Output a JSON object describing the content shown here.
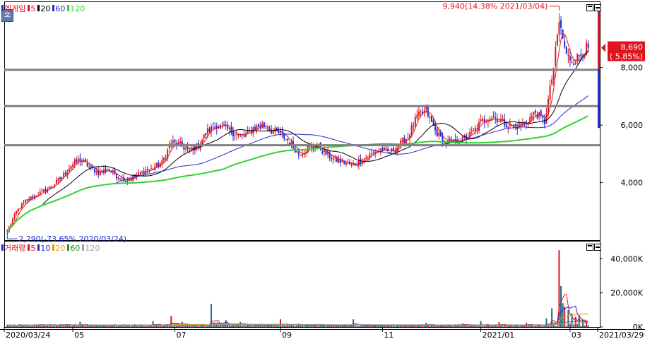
{
  "price_legend": {
    "name": "엠게임",
    "ma": [
      {
        "label": "5",
        "color": "#e0141e"
      },
      {
        "label": "20",
        "color": "#000000"
      },
      {
        "label": "60",
        "color": "#2828c8"
      },
      {
        "label": "120",
        "color": "#2fd22f"
      }
    ]
  },
  "volume_legend": {
    "name": "거래량",
    "ma": [
      {
        "label": "5",
        "color": "#e0141e"
      },
      {
        "label": "10",
        "color": "#2828c8"
      },
      {
        "label": "20",
        "color": "#e0a000"
      },
      {
        "label": "60",
        "color": "#2f8f2f"
      },
      {
        "label": "120",
        "color": "#a0a0a0"
      }
    ]
  },
  "side_icon": "호",
  "colors": {
    "up": "#e0141e",
    "down": "#1c2cd8",
    "level": "#808080",
    "price_tag": "#e0141e"
  },
  "chart_data": [
    {
      "type": "candlestick",
      "title": "엠게임",
      "ylim": [
        2000,
        10300
      ],
      "yticks": [
        {
          "value": 4000,
          "label": "4,000"
        },
        {
          "value": 6000,
          "label": "6,000"
        },
        {
          "value": 8000,
          "label": "8,000"
        }
      ],
      "x_labels": [
        "2020/03/24",
        "05",
        "07",
        "09",
        "11",
        "2021/01",
        "03",
        "2021/03/29"
      ],
      "horizontal_levels": [
        7920,
        6660,
        5300
      ],
      "last_price": {
        "value": 8690,
        "label": "8,690",
        "change": "( 5.85%)"
      },
      "annotations": {
        "high": {
          "value": 9940,
          "text": "9,940(14.38% 2021/03/04)"
        },
        "low": {
          "value": 2290,
          "text": "2,290(-73.65% 2020/03/24)"
        }
      },
      "anchors": [
        [
          0,
          2290
        ],
        [
          5,
          3000
        ],
        [
          10,
          3350
        ],
        [
          15,
          3550
        ],
        [
          20,
          3700
        ],
        [
          25,
          3900
        ],
        [
          30,
          4200
        ],
        [
          35,
          4600
        ],
        [
          40,
          4800
        ],
        [
          45,
          4550
        ],
        [
          50,
          4350
        ],
        [
          55,
          4450
        ],
        [
          60,
          4250
        ],
        [
          65,
          4100
        ],
        [
          70,
          4200
        ],
        [
          75,
          4400
        ],
        [
          80,
          4500
        ],
        [
          85,
          4700
        ],
        [
          90,
          5400
        ],
        [
          95,
          5300
        ],
        [
          100,
          5100
        ],
        [
          105,
          5300
        ],
        [
          110,
          5800
        ],
        [
          115,
          6000
        ],
        [
          120,
          5900
        ],
        [
          125,
          5700
        ],
        [
          130,
          5600
        ],
        [
          135,
          5900
        ],
        [
          140,
          6000
        ],
        [
          145,
          5800
        ],
        [
          150,
          5700
        ],
        [
          155,
          5400
        ],
        [
          160,
          5000
        ],
        [
          165,
          5200
        ],
        [
          170,
          5300
        ],
        [
          175,
          5000
        ],
        [
          180,
          4800
        ],
        [
          185,
          4700
        ],
        [
          190,
          4600
        ],
        [
          195,
          4800
        ],
        [
          200,
          5000
        ],
        [
          205,
          5150
        ],
        [
          210,
          5050
        ],
        [
          215,
          5300
        ],
        [
          220,
          5600
        ],
        [
          225,
          6300
        ],
        [
          230,
          6500
        ],
        [
          235,
          5800
        ],
        [
          240,
          5400
        ],
        [
          245,
          5400
        ],
        [
          250,
          5500
        ],
        [
          255,
          5700
        ],
        [
          260,
          6100
        ],
        [
          265,
          6300
        ],
        [
          270,
          6200
        ],
        [
          275,
          6000
        ],
        [
          280,
          5950
        ],
        [
          285,
          6100
        ],
        [
          290,
          6450
        ],
        [
          295,
          6100
        ],
        [
          300,
          8000
        ],
        [
          303,
          9600
        ],
        [
          307,
          8400
        ],
        [
          311,
          8250
        ],
        [
          315,
          8450
        ],
        [
          318,
          8690
        ]
      ],
      "moving_averages": [
        {
          "name": "5",
          "period": 5
        },
        {
          "name": "20",
          "period": 20
        },
        {
          "name": "60",
          "period": 60
        },
        {
          "name": "120",
          "period": 120
        }
      ]
    },
    {
      "type": "bar",
      "title": "거래량",
      "ylim": [
        0,
        48000
      ],
      "yticks": [
        {
          "value": 0,
          "label": "0K"
        },
        {
          "value": 20000,
          "label": "20,000K"
        },
        {
          "value": 40000,
          "label": "40,000K"
        }
      ],
      "spikes": [
        [
          0,
          1200
        ],
        [
          20,
          1500
        ],
        [
          40,
          3000
        ],
        [
          80,
          3500
        ],
        [
          90,
          6500
        ],
        [
          96,
          3000
        ],
        [
          112,
          13500
        ],
        [
          120,
          4000
        ],
        [
          128,
          3000
        ],
        [
          150,
          4500
        ],
        [
          160,
          2000
        ],
        [
          190,
          4500
        ],
        [
          230,
          2500
        ],
        [
          250,
          2000
        ],
        [
          260,
          3500
        ],
        [
          270,
          2800
        ],
        [
          285,
          2500
        ],
        [
          296,
          5000
        ],
        [
          299,
          11000
        ],
        [
          303,
          45000
        ],
        [
          304,
          24000
        ],
        [
          305,
          14000
        ],
        [
          306,
          12000
        ],
        [
          308,
          10000
        ],
        [
          310,
          8000
        ],
        [
          312,
          6000
        ],
        [
          314,
          7000
        ],
        [
          316,
          4000
        ],
        [
          318,
          3500
        ]
      ],
      "base": 900
    }
  ]
}
